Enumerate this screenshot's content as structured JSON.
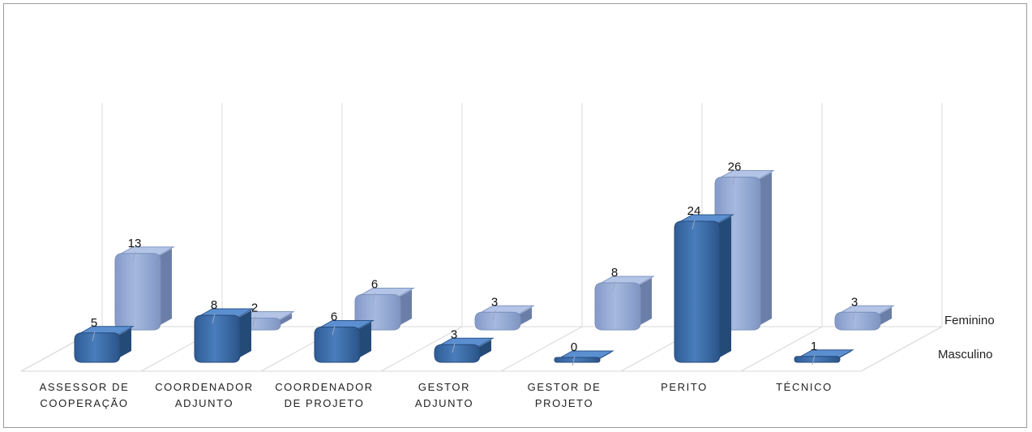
{
  "chart_data": {
    "type": "bar",
    "style": "3d-column",
    "categories": [
      [
        "ASSESSOR DE",
        "COOPERAÇÃO"
      ],
      [
        "COORDENADOR",
        "ADJUNTO"
      ],
      [
        "COORDENADOR",
        "DE PROJETO"
      ],
      [
        "GESTOR",
        "ADJUNTO"
      ],
      [
        "GESTOR DE",
        "PROJETO"
      ],
      [
        "PERITO"
      ],
      [
        "TÉCNICO"
      ]
    ],
    "series": [
      {
        "name": "Masculino",
        "values": [
          5,
          8,
          6,
          3,
          0,
          24,
          1
        ],
        "color": "#3d6ea8"
      },
      {
        "name": "Feminino",
        "values": [
          13,
          2,
          6,
          3,
          8,
          26,
          3
        ],
        "color": "#93a9d3"
      }
    ],
    "ylim": [
      0,
      30
    ],
    "grid": false,
    "data_labels": true
  }
}
